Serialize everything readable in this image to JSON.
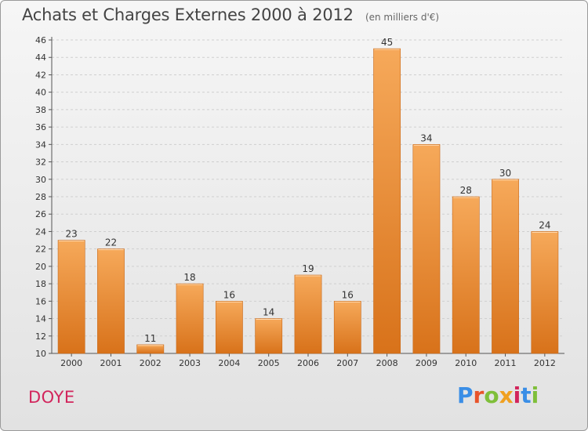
{
  "header": {
    "title": "Achats et Charges Externes 2000 à 2012",
    "subtitle": "(en milliers d'€)"
  },
  "footer": {
    "commune": "DOYE",
    "logo_text": "Proxiti",
    "logo_colors": [
      "#3a8ee6",
      "#e8542a",
      "#7fbf3a",
      "#f0a020",
      "#d2255c",
      "#3a8ee6",
      "#7fbf3a"
    ]
  },
  "chart_data": {
    "type": "bar",
    "title": "Achats et Charges Externes 2000 à 2012",
    "subtitle": "(en milliers d'€)",
    "xlabel": "",
    "ylabel": "",
    "categories": [
      "2000",
      "2001",
      "2002",
      "2003",
      "2004",
      "2005",
      "2006",
      "2007",
      "2008",
      "2009",
      "2010",
      "2011",
      "2012"
    ],
    "values": [
      23,
      22,
      11,
      18,
      16,
      14,
      19,
      16,
      45,
      34,
      28,
      30,
      24
    ],
    "ylim": [
      10,
      46
    ],
    "yticks": [
      10,
      12,
      14,
      16,
      18,
      20,
      22,
      24,
      26,
      28,
      30,
      32,
      34,
      36,
      38,
      40,
      42,
      44,
      46
    ],
    "grid": true,
    "bar_color_top": "#f6a95a",
    "bar_color_bottom": "#d8721a"
  }
}
